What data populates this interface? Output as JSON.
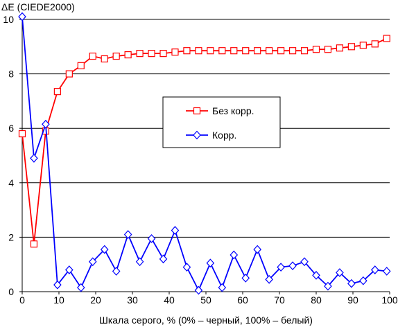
{
  "chart_data": {
    "type": "line",
    "ylabel": "ΔE (CIEDE2000)",
    "xlabel": "Шкала серого, % (0% – черный, 100% – белый)",
    "xlim": [
      0,
      100
    ],
    "ylim": [
      0,
      10
    ],
    "x_ticks": [
      0,
      10,
      20,
      30,
      40,
      50,
      60,
      70,
      80,
      90,
      100
    ],
    "y_ticks": [
      0,
      2,
      4,
      6,
      8,
      10
    ],
    "grid": "horizontal",
    "legend_position": "center-right",
    "x": [
      0,
      3.2,
      6.4,
      9.6,
      12.8,
      16,
      19.2,
      22.4,
      25.6,
      28.8,
      32,
      35.2,
      38.4,
      41.6,
      44.8,
      48,
      51.2,
      54.4,
      57.6,
      60.8,
      64,
      67.2,
      70.4,
      73.6,
      76.8,
      80,
      83.2,
      86.4,
      89.6,
      92.8,
      96,
      99.2
    ],
    "series": [
      {
        "name": "Без корр.",
        "color": "#ff0000",
        "marker": "square",
        "values": [
          5.8,
          1.75,
          5.9,
          7.35,
          8.0,
          8.3,
          8.65,
          8.55,
          8.65,
          8.7,
          8.75,
          8.75,
          8.75,
          8.8,
          8.85,
          8.85,
          8.85,
          8.85,
          8.85,
          8.85,
          8.85,
          8.85,
          8.85,
          8.85,
          8.85,
          8.9,
          8.9,
          8.95,
          9.0,
          9.05,
          9.1,
          9.3
        ]
      },
      {
        "name": "Корр.",
        "color": "#0000ff",
        "marker": "diamond",
        "values": [
          10.1,
          4.9,
          6.15,
          0.25,
          0.8,
          0.15,
          1.1,
          1.55,
          0.75,
          2.1,
          1.1,
          1.95,
          1.2,
          2.25,
          0.9,
          0.05,
          1.05,
          0.15,
          1.35,
          0.5,
          1.55,
          0.45,
          0.9,
          0.95,
          1.1,
          0.6,
          0.2,
          0.7,
          0.3,
          0.4,
          0.8,
          0.75
        ]
      }
    ]
  }
}
